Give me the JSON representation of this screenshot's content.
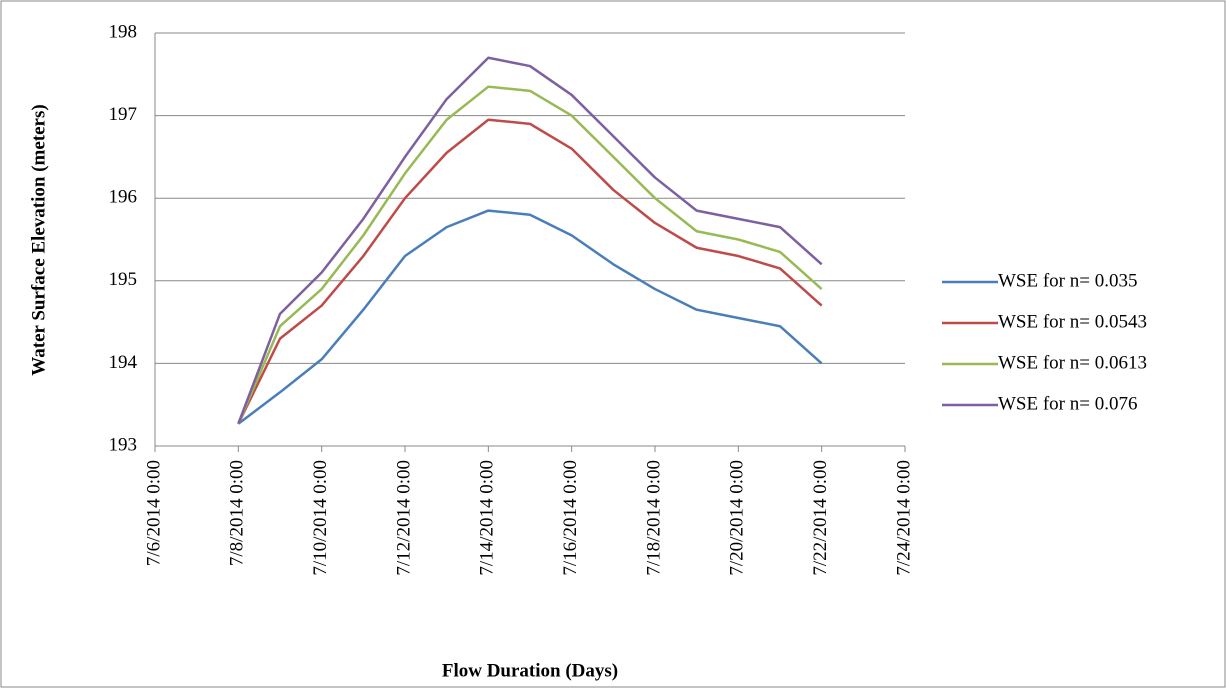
{
  "chart_data": {
    "type": "line",
    "x_label": "Flow Duration (Days)",
    "y_label": "Water Surface Elevation (meters)",
    "x": [
      "7/8/2014 0:00",
      "7/9/2014 0:00",
      "7/10/2014 0:00",
      "7/11/2014 0:00",
      "7/12/2014 0:00",
      "7/13/2014 0:00",
      "7/14/2014 0:00",
      "7/15/2014 0:00",
      "7/16/2014 0:00",
      "7/17/2014 0:00",
      "7/18/2014 0:00",
      "7/19/2014 0:00",
      "7/20/2014 0:00",
      "7/21/2014 0:00",
      "7/22/2014 0:00"
    ],
    "series": [
      {
        "name": "WSE for n= 0.035",
        "color": "#4a7ebb",
        "values": [
          193.27,
          193.65,
          194.05,
          194.65,
          195.3,
          195.65,
          195.85,
          195.8,
          195.55,
          195.2,
          194.9,
          194.65,
          194.55,
          194.45,
          194.0
        ]
      },
      {
        "name": "WSE for n= 0.0543",
        "color": "#be4b48",
        "values": [
          193.27,
          194.3,
          194.7,
          195.3,
          196.0,
          196.55,
          196.95,
          196.9,
          196.6,
          196.1,
          195.7,
          195.4,
          195.3,
          195.15,
          194.7
        ]
      },
      {
        "name": "WSE for n= 0.0613",
        "color": "#98b954",
        "values": [
          193.27,
          194.45,
          194.9,
          195.55,
          196.3,
          196.95,
          197.35,
          197.3,
          197.0,
          196.5,
          196.0,
          195.6,
          195.5,
          195.35,
          194.9
        ]
      },
      {
        "name": "WSE for n= 0.076",
        "color": "#7d60a0",
        "values": [
          193.27,
          194.6,
          195.1,
          195.75,
          196.5,
          197.2,
          197.7,
          197.6,
          197.25,
          196.75,
          196.25,
          195.85,
          195.75,
          195.65,
          195.2
        ]
      }
    ],
    "xlim": [
      "7/6/2014 0:00",
      "7/24/2014 0:00"
    ],
    "xticks": [
      "7/6/2014 0:00",
      "7/8/2014 0:00",
      "7/10/2014 0:00",
      "7/12/2014 0:00",
      "7/14/2014 0:00",
      "7/16/2014 0:00",
      "7/18/2014 0:00",
      "7/20/2014 0:00",
      "7/22/2014 0:00",
      "7/24/2014 0:00"
    ],
    "ylim": [
      193,
      198
    ],
    "yticks": [
      193,
      194,
      195,
      196,
      197,
      198
    ],
    "grid": true,
    "legend": "right"
  }
}
